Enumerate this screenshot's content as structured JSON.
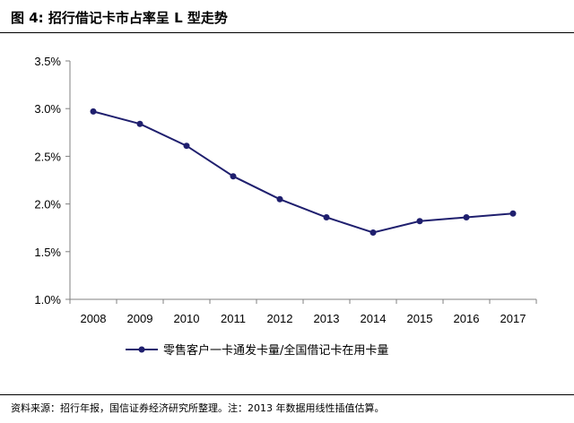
{
  "figure": {
    "title": "图 4:  招行借记卡市占率呈 L 型走势",
    "source": "资料来源：招行年报，国信证券经济研究所整理。注：2013 年数据用线性插值估算。"
  },
  "chart_data": {
    "type": "line",
    "categories": [
      "2008",
      "2009",
      "2010",
      "2011",
      "2012",
      "2013",
      "2014",
      "2015",
      "2016",
      "2017"
    ],
    "series": [
      {
        "name": "零售客户一卡通发卡量/全国借记卡在用卡量",
        "values": [
          2.97,
          2.84,
          2.61,
          2.29,
          2.05,
          1.86,
          1.7,
          1.82,
          1.86,
          1.9
        ],
        "color": "#1f1f6e"
      }
    ],
    "yticks": [
      "1.0%",
      "1.5%",
      "2.0%",
      "2.5%",
      "3.0%",
      "3.5%"
    ],
    "ylim": [
      1.0,
      3.5
    ],
    "y_unit": "%",
    "grid": false,
    "legend_position": "bottom"
  }
}
